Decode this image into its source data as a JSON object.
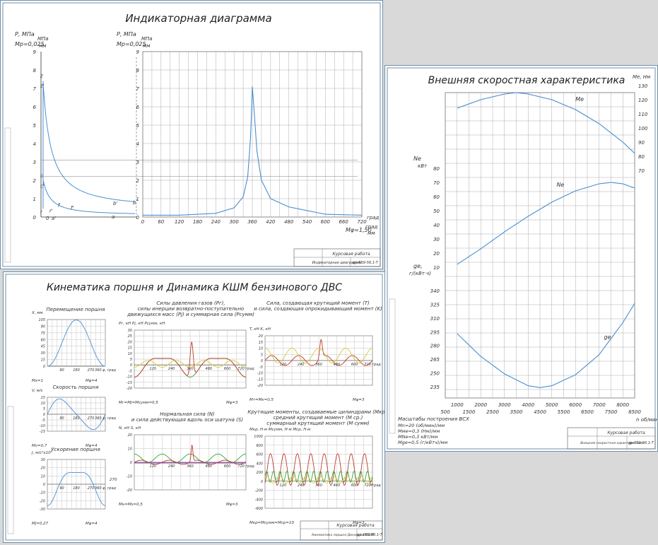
{
  "sheet1": {
    "title": "Индикаторная диаграмма",
    "left_axis": {
      "unit_line1": "Р, МПа",
      "scale": "Мр=0,025",
      "frac_top": "МПа",
      "frac_bot": "мм",
      "ticks": [
        "0",
        "1",
        "2",
        "3",
        "4",
        "5",
        "6",
        "7",
        "8",
        "9"
      ]
    },
    "mid_axis": {
      "unit_line1": "Р, МПа",
      "scale": "Мр=0,025",
      "frac_top": "МПа",
      "frac_bot": "мм"
    },
    "pv_points": [
      "z",
      "z'",
      "c",
      "c'",
      "b",
      "b'",
      "r",
      "r'",
      "f",
      "f'",
      "a",
      "a'",
      "0"
    ],
    "x_ticks": [
      "0",
      "60",
      "120",
      "180",
      "240",
      "300",
      "360",
      "420",
      "480",
      "540",
      "600",
      "660",
      "720"
    ],
    "x_unit": "град",
    "x_scale": "Мφ=1,50",
    "x_frac_top": "град",
    "x_frac_bot": "мм",
    "stamp": {
      "work": "Курсовая работа",
      "name": "Индикаторная диаграмма",
      "code": "gp.6Б9-56.1-Т"
    }
  },
  "sheet2": {
    "title": "Внешняя скоростная характеристика",
    "me_axis": {
      "unit": "Me, Нм",
      "ticks": [
        "130",
        "120",
        "110",
        "100",
        "90",
        "80",
        "70"
      ]
    },
    "ne_axis": {
      "unit_line1": "Ne",
      "unit_line2": "кВт",
      "ticks": [
        "80",
        "70",
        "60",
        "50",
        "40",
        "30",
        "20",
        "10"
      ]
    },
    "ge_axis": {
      "unit_line1": "ge,",
      "unit_line2": "г/(кВт·ч)",
      "ticks": [
        "340",
        "325",
        "310",
        "295",
        "280",
        "265",
        "250",
        "235"
      ]
    },
    "x_ticks_top": [
      "1000",
      "2000",
      "3000",
      "4000",
      "5000",
      "6000",
      "7000",
      "8000"
    ],
    "x_ticks_bottom": [
      "500",
      "1500",
      "2500",
      "3500",
      "4500",
      "5500",
      "6500",
      "7500",
      "8500"
    ],
    "x_unit": "n об/мин",
    "curve_labels": {
      "me": "Me",
      "ne": "Ne",
      "ge": "ge"
    },
    "scales_title": "Масштабы построения ВСХ",
    "scales": [
      "Мn=20 (об/мин)/мм",
      "Мме=0,3 (Нм)/мм",
      "МNe=0,3 кВт/мм",
      "Мge=0,5 (г/кВтч)/мм"
    ],
    "stamp": {
      "work": "Курсовая работа",
      "name": "Внешняя скоростная характеристика",
      "code": "gp.6Б9-56.1-Т"
    }
  },
  "sheet3": {
    "title": "Кинематика поршня и Динамика КШМ бензинового ДВС",
    "stamp": {
      "work": "Курсовая работа",
      "name": "Кинематика поршня Динамика КШМ",
      "code": "gp.6Б9-56.1-Т"
    },
    "charts": [
      {
        "id": "disp",
        "title": [
          "Перемещение поршня"
        ],
        "ylab": "X, мм",
        "yticks": [
          "105",
          "90",
          "75",
          "60",
          "45",
          "30",
          "15",
          "0"
        ],
        "xticks": [
          "90",
          "180",
          "270",
          "360 φ, град"
        ],
        "scale_y": "Мх=1",
        "scale_x": "Мφ=4"
      },
      {
        "id": "vel",
        "title": [
          "Скорость поршня"
        ],
        "ylab": "V, м/с",
        "yticks": [
          "15",
          "10",
          "5",
          "0",
          "-5",
          "-10",
          "-15"
        ],
        "xticks": [
          "90",
          "180",
          "270",
          "360 φ, град"
        ],
        "scale_y": "Мv=0,7",
        "scale_x": "Мφ=4"
      },
      {
        "id": "acc",
        "title": [
          "Ускорение поршня"
        ],
        "ylab": "J, м/с²х10³",
        "yticks": [
          "30",
          "20",
          "10",
          "0",
          "-10",
          "-20",
          "-30"
        ],
        "xticks": [
          "90",
          "180",
          "270",
          "360 φ, град"
        ],
        "scale_y": "Мj=0,27",
        "scale_x": "Мφ=4",
        "side": "270"
      },
      {
        "id": "forces",
        "title": [
          "Силы давления газов (Рг),",
          "силы инерции возвратно-поступательно",
          "движущихся масс (Рj) и суммарная сила (Рсумм)"
        ],
        "ylab": "Pг, кН Pj, кН Pсумм, кН",
        "yticks": [
          "30",
          "25",
          "20",
          "15",
          "10",
          "5",
          "0",
          "-5",
          "-10",
          "-15",
          "-20"
        ],
        "xticks": [
          "120",
          "240",
          "360",
          "480",
          "600",
          "720 град"
        ],
        "scale_y": "Мг=Мj=Мсумм=0,5",
        "scale_x": "Мφ=3"
      },
      {
        "id": "tk",
        "title": [
          "Сила, создающая крутящий момент (T)",
          "и сила, создающая опрокидывающий момент (K)"
        ],
        "ylab": "T, кН K, кН",
        "yticks": [
          "20",
          "15",
          "10",
          "5",
          "0",
          "-5",
          "-10",
          "-15",
          "-20"
        ],
        "xticks": [
          "120",
          "240",
          "360",
          "480",
          "600",
          "720 град"
        ],
        "scale_y": "Мт=Мк=0,5",
        "scale_x": "Мφ=3"
      },
      {
        "id": "ns",
        "title": [
          "Нормальная сила (N)",
          "и сила действующая вдоль оси шатуна (S)"
        ],
        "ylab": "N, кН S, кН",
        "yticks": [
          "20",
          "10",
          "0",
          "-10",
          "-20"
        ],
        "xticks": [
          "120",
          "240",
          "360",
          "480",
          "600",
          "720 град"
        ],
        "scale_y": "Мн=Мs=0,5",
        "scale_x": "Мφ=3"
      },
      {
        "id": "torque",
        "title": [
          "Крутящие моменты, создаваемые цилиндрами (Мкр),",
          "средний крутящий момент (М ср.)",
          "суммарный крутящий момент (М сумм)"
        ],
        "ylab": "Мкр, Н·м Мсумм, Н·м Мср, Н·м",
        "yticks": [
          "1000",
          "800",
          "600",
          "400",
          "200",
          "0",
          "-200",
          "-400",
          "-600"
        ],
        "xticks": [
          "120",
          "240",
          "360",
          "480",
          "600",
          "720 град"
        ],
        "scale_y": "Мкр=Мсумм=Мср=10",
        "scale_x": "Мφ=3"
      }
    ]
  },
  "colors": {
    "blue": "#4a8fd0",
    "red": "#c0392b",
    "green": "#3aa13a",
    "yellow": "#d6c93a",
    "violet": "#8e44ad",
    "grid": "#555"
  },
  "chart_data": [
    {
      "type": "line",
      "title": "Индикаторная диаграмма",
      "xlabel": "град",
      "ylabel": "Р, МПа",
      "ylim": [
        0,
        9
      ],
      "xlim": [
        0,
        720
      ],
      "series": [
        {
          "name": "",
          "x": [
            0,
            120,
            240,
            300,
            330,
            345,
            355,
            360,
            365,
            375,
            390,
            420,
            480,
            540,
            600,
            720
          ],
          "values": [
            0.1,
            0.1,
            0.2,
            0.5,
            1.1,
            2.2,
            4.5,
            7.1,
            6.0,
            3.6,
            2.0,
            1.0,
            0.55,
            0.35,
            0.15,
            0.1
          ]
        }
      ]
    },
    {
      "type": "line",
      "title": "Внешняя скоростная характеристика",
      "xlabel": "n об/мин",
      "ylabel": "Me, Нм",
      "xlim": [
        1000,
        8500
      ],
      "ylim": [
        70,
        130
      ],
      "series": [
        {
          "name": "Me",
          "x": [
            1000,
            2000,
            3000,
            3500,
            4000,
            5000,
            6000,
            7000,
            8000,
            8500
          ],
          "values": [
            114,
            120,
            124,
            125,
            124,
            120,
            113,
            103,
            90,
            82
          ]
        }
      ]
    },
    {
      "type": "line",
      "xlabel": "n об/мин",
      "ylabel": "Ne, кВт",
      "xlim": [
        1000,
        8500
      ],
      "ylim": [
        10,
        80
      ],
      "series": [
        {
          "name": "Ne",
          "x": [
            1000,
            2000,
            3000,
            4000,
            5000,
            6000,
            7000,
            7500,
            8000,
            8500
          ],
          "values": [
            12,
            23,
            35,
            46,
            56,
            64,
            69,
            70,
            69,
            66
          ]
        }
      ]
    },
    {
      "type": "line",
      "xlabel": "n об/мин",
      "ylabel": "ge, г/(кВт·ч)",
      "xlim": [
        1000,
        8500
      ],
      "ylim": [
        235,
        340
      ],
      "series": [
        {
          "name": "ge",
          "x": [
            1000,
            2000,
            3000,
            4000,
            4500,
            5000,
            6000,
            7000,
            8000,
            8500
          ],
          "values": [
            293,
            268,
            249,
            236,
            234,
            236,
            248,
            270,
            305,
            326
          ]
        }
      ]
    }
  ]
}
